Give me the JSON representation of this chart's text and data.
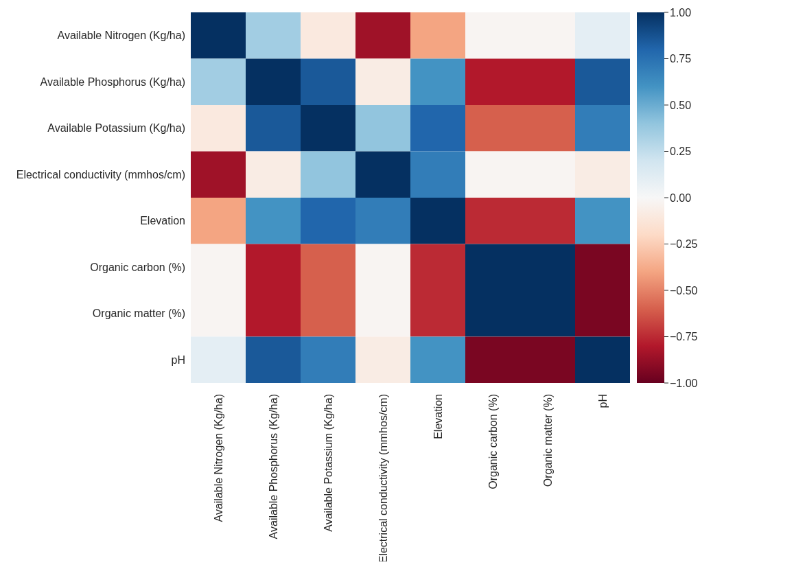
{
  "chart_data": {
    "type": "heatmap",
    "categories": [
      "Available Nitrogen (Kg/ha)",
      "Available Phosphorus (Kg/ha)",
      "Available Potassium (Kg/ha)",
      "Electrical conductivity (mmhos/cm)",
      "Elevation",
      "Organic carbon (%)",
      "Organic matter (%)",
      "pH"
    ],
    "y_categories": [
      "Available Nitrogen (Kg/ha)",
      "Available Phosphorus (Kg/ha)",
      "Available Potassium (Kg/ha)",
      "Electrical conductivity (mmhos/cm)",
      "Elevation",
      "Organic carbon (%)",
      "Organic matter (%)",
      "pH"
    ],
    "cells": [
      [
        1,
        0.35,
        -0.1,
        -0.85,
        -0.4,
        -0.02,
        -0.02,
        0.1
      ],
      [
        0.35,
        1,
        0.85,
        -0.08,
        0.6,
        -0.8,
        -0.8,
        0.85
      ],
      [
        -0.1,
        0.85,
        1,
        0.4,
        0.8,
        -0.6,
        -0.6,
        0.7
      ],
      [
        -0.85,
        -0.08,
        0.4,
        1,
        0.7,
        -0.02,
        -0.02,
        -0.08
      ],
      [
        -0.4,
        0.6,
        0.8,
        0.7,
        1,
        -0.75,
        -0.75,
        0.6
      ],
      [
        -0.02,
        -0.8,
        -0.6,
        -0.02,
        -0.75,
        1,
        1,
        -0.95
      ],
      [
        -0.02,
        -0.8,
        -0.6,
        -0.02,
        -0.75,
        1,
        1,
        -0.95
      ],
      [
        0.1,
        0.85,
        0.7,
        -0.08,
        0.6,
        -0.95,
        -0.95,
        1
      ]
    ],
    "clim": [
      -1,
      1
    ],
    "cticks": [
      {
        "value": 1,
        "label": "1.00"
      },
      {
        "value": 0.75,
        "label": "0.75"
      },
      {
        "value": 0.5,
        "label": "0.50"
      },
      {
        "value": 0.25,
        "label": "0.25"
      },
      {
        "value": 0,
        "label": "0.00"
      },
      {
        "value": -0.25,
        "label": "−0.25"
      },
      {
        "value": -0.5,
        "label": "−0.50"
      },
      {
        "value": -0.75,
        "label": "−0.75"
      },
      {
        "value": -1,
        "label": "−1.00"
      }
    ]
  }
}
